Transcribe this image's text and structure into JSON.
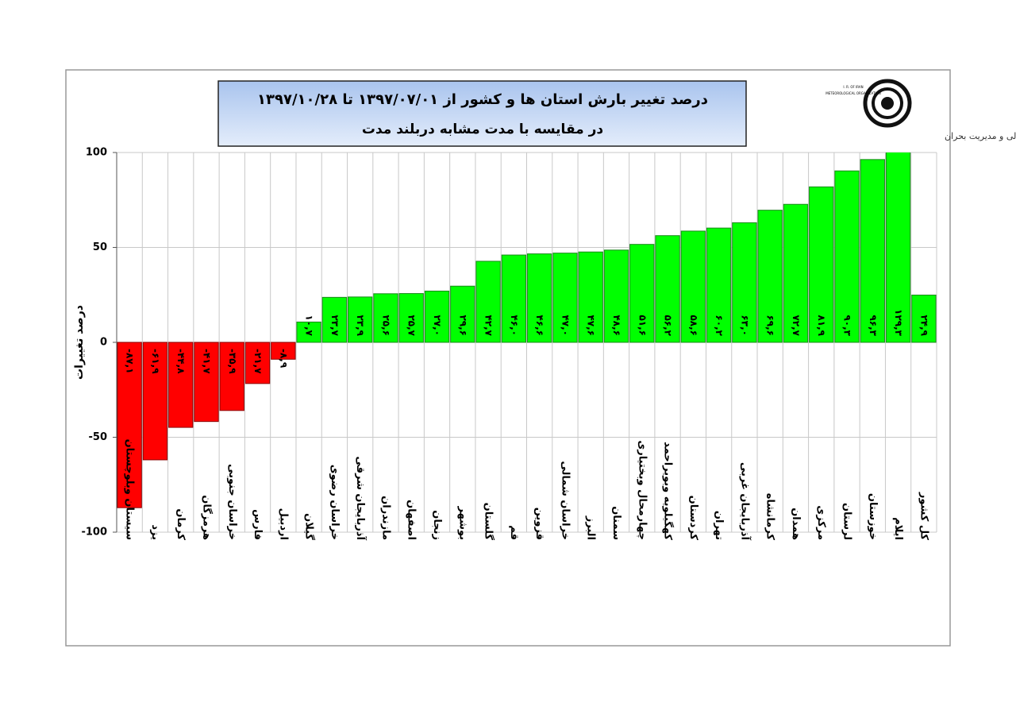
{
  "chart_data": {
    "type": "bar",
    "title": "درصد تغییر بارش استان ها و کشور از ۱۳۹۷/۰۷/۰۱ تا ۱۳۹۷/۱۰/۲۸",
    "subtitle": "در مقایسه با مدت مشابه دربلند مدت",
    "y_label": "درصد تغییرات",
    "categories": [
      "سیستان وبلوچستان",
      "یزد",
      "کرمان",
      "هرمزگان",
      "خراسان جنوبی",
      "فارس",
      "اردبیل",
      "گیلان",
      "خراسان رضوی",
      "آذربایجان شرقی",
      "مازندران",
      "اصفهان",
      "زنجان",
      "بوشهر",
      "گلستان",
      "قم",
      "قزوین",
      "خراسان شمالی",
      "البرز",
      "سمنان",
      "چهارمحال وبختیاری",
      "کهگیلویه وبویراحمد",
      "کردستان",
      "تهران",
      "آذربایجان غربی",
      "کرمانشاه",
      "همدان",
      "مرکزی",
      "لرستان",
      "خوزستان",
      "ایلام",
      "کل کشور"
    ],
    "values": [
      -87.1,
      -61.9,
      -44.8,
      -41.7,
      -35.9,
      -21.7,
      -8.9,
      10.7,
      23.7,
      23.9,
      25.6,
      25.7,
      27.0,
      29.6,
      42.7,
      46.0,
      46.6,
      47.0,
      47.6,
      48.6,
      51.6,
      56.2,
      58.6,
      60.2,
      63.0,
      69.6,
      72.7,
      81.9,
      90.3,
      96.3,
      129.3,
      24.9
    ],
    "value_labels": [
      "-۸۷,۱",
      "-۶۱,۹",
      "-۴۴,۸",
      "-۴۱,۷",
      "-۳۵,۹",
      "-۲۱,۷",
      "-۸,۹",
      "۱۰,۷",
      "۲۳,۷",
      "۲۳,۹",
      "۲۵,۶",
      "۲۵,۷",
      "۲۷,۰",
      "۲۹,۶",
      "۴۲,۷",
      "۴۶,۰",
      "۴۶,۶",
      "۴۷,۰",
      "۴۷,۶",
      "۴۸,۶",
      "۵۱,۶",
      "۵۶,۲",
      "۵۸,۶",
      "۶۰,۲",
      "۶۳,۰",
      "۶۹,۶",
      "۷۲,۷",
      "۸۱,۹",
      "۹۰,۳",
      "۹۶,۳",
      "۱۲۹,۳",
      "۲۴,۹"
    ],
    "colors": {
      "negative": "#ff0000",
      "positive": "#00ff00"
    },
    "ylim": [
      -100,
      100
    ],
    "yticks": [
      -100,
      -50,
      0,
      50,
      100
    ],
    "grid": true
  },
  "logo": {
    "line1": "I. R. OF IRAN",
    "line2": "METEOROLOGICAL ORGANIZATION",
    "caption": "مرکز ملی خشکسالی و مدیریت بحران"
  }
}
